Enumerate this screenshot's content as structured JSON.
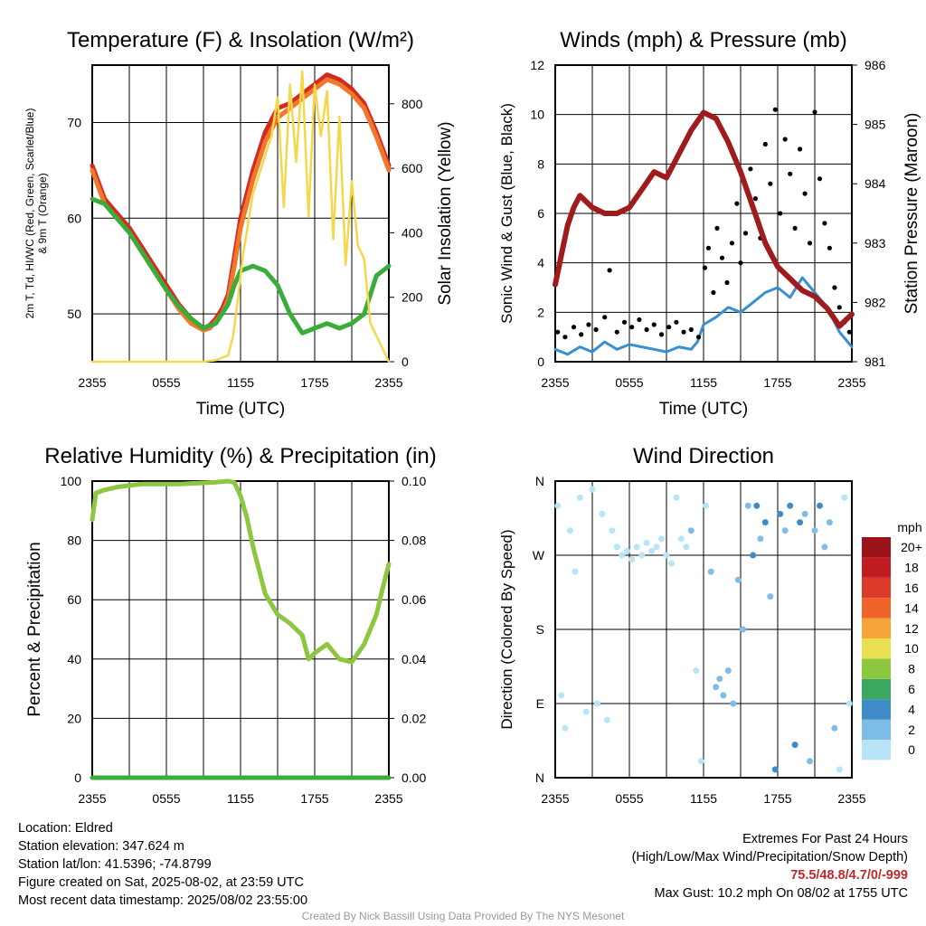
{
  "chart_data": [
    {
      "type": "line",
      "title": "Temperature (F) & Insolation (W/m²)",
      "xlabel": "Time (UTC)",
      "ylabel": "2m T, Td, HI/WC (Red, Green, Scarlet/Blue) & 9m T (Orange)",
      "y2label": "Solar Insolation (Yellow)",
      "x_ticks": [
        "2355",
        "0555",
        "1155",
        "1755",
        "2355"
      ],
      "y_ticks": [
        50,
        60,
        70
      ],
      "y2_ticks": [
        0,
        200,
        400,
        600,
        800
      ],
      "ylim": [
        45,
        76
      ],
      "y2lim": [
        0,
        920
      ],
      "xlim_hours": [
        0,
        24
      ],
      "grid": true,
      "series": [
        {
          "name": "2m T",
          "color": "#d42a20",
          "axis": "left",
          "x": [
            0,
            1,
            2,
            3,
            4,
            5,
            6,
            7,
            8,
            9,
            9.5,
            10,
            10.5,
            11,
            11.5,
            12,
            13,
            14,
            15,
            16,
            17,
            18,
            19,
            20,
            21,
            22,
            23,
            24
          ],
          "y": [
            65.5,
            62,
            60.5,
            59,
            57,
            55,
            53,
            51,
            49.5,
            48.5,
            48.8,
            49.5,
            50.5,
            52,
            56,
            60,
            65,
            69,
            71.5,
            72,
            73,
            74,
            75,
            74.5,
            73.5,
            72,
            69,
            65.5
          ]
        },
        {
          "name": "9m T",
          "color": "#f0782a",
          "axis": "left",
          "x": [
            0,
            1,
            2,
            3,
            4,
            5,
            6,
            7,
            8,
            9,
            9.5,
            10,
            10.5,
            11,
            11.5,
            12,
            13,
            14,
            15,
            16,
            17,
            18,
            19,
            20,
            21,
            22,
            23,
            24
          ],
          "y": [
            65,
            61.5,
            60,
            58.5,
            56.5,
            54.5,
            52.5,
            50.5,
            49,
            48.3,
            48.5,
            49.2,
            50,
            51.5,
            55,
            59,
            64,
            68,
            70.5,
            71.5,
            72.5,
            73.5,
            74.5,
            74,
            73,
            71.5,
            68.5,
            65
          ]
        },
        {
          "name": "Td",
          "color": "#3bab3b",
          "axis": "left",
          "x": [
            0,
            1,
            2,
            3,
            4,
            5,
            6,
            7,
            8,
            9,
            10,
            11,
            11.5,
            12,
            13,
            14,
            15,
            16,
            17,
            18,
            19,
            20,
            21,
            22,
            23,
            24
          ],
          "y": [
            62,
            61.5,
            60,
            58.5,
            56.5,
            54.5,
            52.5,
            50.8,
            49.5,
            48.5,
            49,
            51,
            53,
            54.5,
            55,
            54.5,
            53,
            50,
            48,
            48.5,
            49,
            48.5,
            49,
            50,
            54,
            55
          ]
        },
        {
          "name": "Insolation",
          "color": "#f5d84a",
          "axis": "right",
          "x": [
            0,
            1,
            2,
            3,
            4,
            5,
            6,
            7,
            8,
            9,
            10,
            11,
            11.4,
            11.8,
            12.2,
            13,
            14,
            14.5,
            15,
            15.5,
            16,
            16.5,
            17,
            17.5,
            18,
            18.5,
            19,
            19.5,
            20,
            20.5,
            21,
            21.5,
            22,
            22.5,
            23,
            24
          ],
          "y": [
            0,
            0,
            0,
            0,
            0,
            0,
            0,
            0,
            0,
            0,
            5,
            20,
            80,
            200,
            330,
            520,
            640,
            700,
            820,
            480,
            860,
            620,
            900,
            450,
            860,
            700,
            840,
            380,
            760,
            300,
            560,
            360,
            320,
            120,
            80,
            0
          ]
        }
      ]
    },
    {
      "type": "line",
      "title": "Winds (mph) & Pressure (mb)",
      "xlabel": "Time (UTC)",
      "ylabel": "Sonic Wind & Gust (Blue, Black)",
      "y2label": "Station Pressure (Maroon)",
      "x_ticks": [
        "2355",
        "0555",
        "1155",
        "1755",
        "2355"
      ],
      "y_ticks": [
        0,
        2,
        4,
        6,
        8,
        10,
        12
      ],
      "y2_ticks": [
        981,
        982,
        983,
        984,
        985,
        986
      ],
      "ylim": [
        0,
        12
      ],
      "y2lim": [
        981,
        986
      ],
      "grid": true,
      "series": [
        {
          "name": "Sonic Wind",
          "color": "#3a8fd0",
          "axis": "left",
          "x": [
            0,
            1,
            2,
            3,
            4,
            5,
            6,
            7,
            8,
            9,
            10,
            11,
            11.5,
            12,
            13,
            14,
            15,
            16,
            17,
            18,
            19,
            20,
            21,
            22,
            23,
            24
          ],
          "y": [
            0.5,
            0.3,
            0.6,
            0.4,
            0.8,
            0.5,
            0.7,
            0.6,
            0.5,
            0.4,
            0.6,
            0.5,
            0.8,
            1.5,
            1.8,
            2.2,
            2.0,
            2.4,
            2.8,
            3.0,
            2.6,
            3.4,
            2.8,
            2.2,
            1.2,
            0.6
          ]
        },
        {
          "name": "Gust",
          "color": "#000000",
          "axis": "left",
          "type": "scatter",
          "x": [
            0.2,
            0.8,
            1.5,
            2.1,
            2.7,
            3.3,
            4.0,
            4.4,
            5.0,
            5.6,
            6.2,
            6.8,
            7.4,
            8.0,
            8.6,
            9.2,
            9.8,
            10.4,
            11.0,
            11.6,
            12.1,
            12.4,
            12.8,
            13.1,
            13.5,
            13.9,
            14.3,
            14.7,
            15.0,
            15.4,
            15.8,
            16.2,
            16.6,
            17.0,
            17.4,
            17.8,
            18.2,
            18.6,
            19.0,
            19.4,
            19.8,
            20.2,
            20.6,
            21.0,
            21.4,
            21.8,
            22.2,
            22.6,
            23.0,
            23.4,
            23.8
          ],
          "y": [
            1.2,
            1.0,
            1.4,
            1.1,
            1.5,
            1.3,
            1.8,
            3.7,
            1.2,
            1.6,
            1.4,
            1.7,
            1.3,
            1.5,
            1.1,
            1.4,
            1.6,
            1.2,
            1.3,
            1.0,
            3.8,
            4.6,
            2.8,
            5.4,
            4.2,
            3.2,
            4.8,
            6.4,
            4.0,
            5.2,
            7.8,
            6.6,
            5.0,
            8.8,
            7.2,
            10.2,
            6.0,
            9.0,
            7.6,
            5.4,
            8.6,
            6.8,
            4.8,
            10.1,
            7.4,
            5.6,
            4.6,
            3.0,
            2.2,
            1.6,
            1.2
          ]
        },
        {
          "name": "Station Pressure",
          "color": "#a01c1c",
          "axis": "right",
          "x": [
            0,
            0.5,
            1,
            1.5,
            2,
            3,
            4,
            5,
            6,
            7,
            8,
            9,
            10,
            11,
            12,
            13,
            14,
            15,
            16,
            17,
            18,
            19,
            20,
            21,
            22,
            23,
            24
          ],
          "y": [
            982.3,
            982.8,
            983.3,
            983.6,
            983.8,
            983.6,
            983.5,
            983.5,
            983.6,
            983.9,
            984.2,
            984.1,
            984.5,
            984.9,
            985.2,
            985.1,
            984.7,
            984.2,
            983.6,
            983.0,
            982.6,
            982.4,
            982.2,
            982.1,
            981.9,
            981.6,
            981.8
          ]
        }
      ]
    },
    {
      "type": "line",
      "title": "Relative Humidity (%) & Precipitation (in)",
      "xlabel": "",
      "ylabel": "Percent & Precipitation",
      "x_ticks": [
        "2355",
        "0555",
        "1155",
        "1755",
        "2355"
      ],
      "y_ticks": [
        0,
        20,
        40,
        60,
        80,
        100
      ],
      "y2_ticks": [
        "0.00",
        "0.02",
        "0.04",
        "0.06",
        "0.08",
        "0.10"
      ],
      "ylim": [
        0,
        100
      ],
      "y2lim": [
        0,
        0.1
      ],
      "grid": true,
      "series": [
        {
          "name": "Relative Humidity",
          "color": "#8dc63f",
          "axis": "left",
          "x": [
            0,
            0.3,
            1,
            2,
            3,
            4,
            5,
            6,
            7,
            8,
            9,
            10,
            11,
            11.5,
            12,
            12.5,
            13,
            13.5,
            14,
            15,
            16,
            17,
            17.5,
            18,
            19,
            20,
            21,
            22,
            23,
            23.5,
            24
          ],
          "y": [
            87,
            96,
            97,
            98,
            98.5,
            99,
            99,
            99,
            99,
            99.2,
            99.4,
            99.6,
            100,
            99.5,
            95,
            88,
            78,
            70,
            62,
            55,
            52,
            48,
            40,
            42,
            45,
            40,
            39,
            45,
            55,
            64,
            72
          ]
        },
        {
          "name": "Precipitation",
          "color": "#3bab3b",
          "axis": "right",
          "x": [
            0,
            24
          ],
          "y": [
            0,
            0
          ]
        }
      ]
    },
    {
      "type": "scatter",
      "title": "Wind Direction",
      "ylabel": "Direction (Colored By Speed)",
      "x_ticks": [
        "2355",
        "0555",
        "1155",
        "1755",
        "2355"
      ],
      "y_ticks": [
        "N",
        "E",
        "S",
        "W",
        "N"
      ],
      "ylim_deg": [
        0,
        360
      ],
      "grid": true,
      "colorbar": {
        "unit": "mph",
        "labels": [
          "0",
          "2",
          "4",
          "6",
          "8",
          "10",
          "12",
          "14",
          "16",
          "18",
          "20+"
        ],
        "colors": [
          "#b8e4f8",
          "#7dbde8",
          "#3d8cc8",
          "#3aa860",
          "#8dc63f",
          "#e8e050",
          "#f6a43a",
          "#f0642a",
          "#dc3a2a",
          "#c01c22",
          "#9c141a"
        ]
      },
      "points": [
        {
          "x": 0.2,
          "deg": 330,
          "spd": 1
        },
        {
          "x": 0.5,
          "deg": 100,
          "spd": 1
        },
        {
          "x": 0.8,
          "deg": 60,
          "spd": 1
        },
        {
          "x": 1.2,
          "deg": 300,
          "spd": 1
        },
        {
          "x": 1.6,
          "deg": 250,
          "spd": 1
        },
        {
          "x": 2.0,
          "deg": 340,
          "spd": 1
        },
        {
          "x": 2.5,
          "deg": 80,
          "spd": 1
        },
        {
          "x": 3.0,
          "deg": 350,
          "spd": 1
        },
        {
          "x": 3.4,
          "deg": 90,
          "spd": 1
        },
        {
          "x": 3.8,
          "deg": 320,
          "spd": 1
        },
        {
          "x": 4.2,
          "deg": 70,
          "spd": 1
        },
        {
          "x": 4.6,
          "deg": 300,
          "spd": 1
        },
        {
          "x": 5.0,
          "deg": 280,
          "spd": 1
        },
        {
          "x": 5.4,
          "deg": 270,
          "spd": 1
        },
        {
          "x": 5.8,
          "deg": 275,
          "spd": 1
        },
        {
          "x": 6.2,
          "deg": 265,
          "spd": 1
        },
        {
          "x": 6.6,
          "deg": 280,
          "spd": 1
        },
        {
          "x": 7.0,
          "deg": 270,
          "spd": 1
        },
        {
          "x": 7.4,
          "deg": 285,
          "spd": 1
        },
        {
          "x": 7.8,
          "deg": 275,
          "spd": 1
        },
        {
          "x": 8.2,
          "deg": 280,
          "spd": 1
        },
        {
          "x": 8.6,
          "deg": 290,
          "spd": 1
        },
        {
          "x": 9.0,
          "deg": 270,
          "spd": 1
        },
        {
          "x": 9.4,
          "deg": 260,
          "spd": 1
        },
        {
          "x": 9.8,
          "deg": 340,
          "spd": 1
        },
        {
          "x": 10.2,
          "deg": 290,
          "spd": 1
        },
        {
          "x": 10.6,
          "deg": 280,
          "spd": 1
        },
        {
          "x": 11.0,
          "deg": 300,
          "spd": 2
        },
        {
          "x": 11.4,
          "deg": 130,
          "spd": 1
        },
        {
          "x": 11.8,
          "deg": 20,
          "spd": 1
        },
        {
          "x": 12.2,
          "deg": 330,
          "spd": 1
        },
        {
          "x": 12.6,
          "deg": 250,
          "spd": 2
        },
        {
          "x": 13.0,
          "deg": 110,
          "spd": 2
        },
        {
          "x": 13.3,
          "deg": 120,
          "spd": 3
        },
        {
          "x": 13.6,
          "deg": 100,
          "spd": 3
        },
        {
          "x": 14.0,
          "deg": 130,
          "spd": 2
        },
        {
          "x": 14.4,
          "deg": 90,
          "spd": 3
        },
        {
          "x": 14.8,
          "deg": 240,
          "spd": 3
        },
        {
          "x": 15.2,
          "deg": 180,
          "spd": 3
        },
        {
          "x": 15.6,
          "deg": 330,
          "spd": 3
        },
        {
          "x": 16.0,
          "deg": 270,
          "spd": 4
        },
        {
          "x": 16.3,
          "deg": 330,
          "spd": 4
        },
        {
          "x": 16.6,
          "deg": 290,
          "spd": 3
        },
        {
          "x": 17.0,
          "deg": 310,
          "spd": 4
        },
        {
          "x": 17.4,
          "deg": 220,
          "spd": 3
        },
        {
          "x": 17.8,
          "deg": 10,
          "spd": 4
        },
        {
          "x": 18.2,
          "deg": 320,
          "spd": 4
        },
        {
          "x": 18.6,
          "deg": 300,
          "spd": 3
        },
        {
          "x": 19.0,
          "deg": 330,
          "spd": 4
        },
        {
          "x": 19.4,
          "deg": 40,
          "spd": 4
        },
        {
          "x": 19.8,
          "deg": 310,
          "spd": 4
        },
        {
          "x": 20.2,
          "deg": 320,
          "spd": 3
        },
        {
          "x": 20.6,
          "deg": 20,
          "spd": 3
        },
        {
          "x": 21.0,
          "deg": 300,
          "spd": 3
        },
        {
          "x": 21.4,
          "deg": 330,
          "spd": 4
        },
        {
          "x": 21.8,
          "deg": 280,
          "spd": 2
        },
        {
          "x": 22.2,
          "deg": 310,
          "spd": 3
        },
        {
          "x": 22.6,
          "deg": 60,
          "spd": 2
        },
        {
          "x": 23.0,
          "deg": 10,
          "spd": 1
        },
        {
          "x": 23.4,
          "deg": 340,
          "spd": 1
        },
        {
          "x": 23.8,
          "deg": 90,
          "spd": 1
        }
      ]
    }
  ],
  "info": {
    "location": "Location: Eldred",
    "elevation": "Station elevation: 347.624 m",
    "latlon": "Station lat/lon: 41.5396; -74.8799",
    "created": "Figure created on Sat, 2025-08-02, at 23:59 UTC",
    "recent": "Most recent data timestamp: 2025/08/02 23:55:00",
    "extremes_title": "Extremes For Past 24 Hours",
    "extremes_desc": "(High/Low/Max Wind/Precipitation/Snow Depth)",
    "extremes_values": "75.5/48.8/4.7/0/-999",
    "max_gust": "Max Gust: 10.2 mph On 08/02 at 1755 UTC",
    "credit": "Created By Nick Bassill Using Data Provided By The NYS Mesonet"
  }
}
